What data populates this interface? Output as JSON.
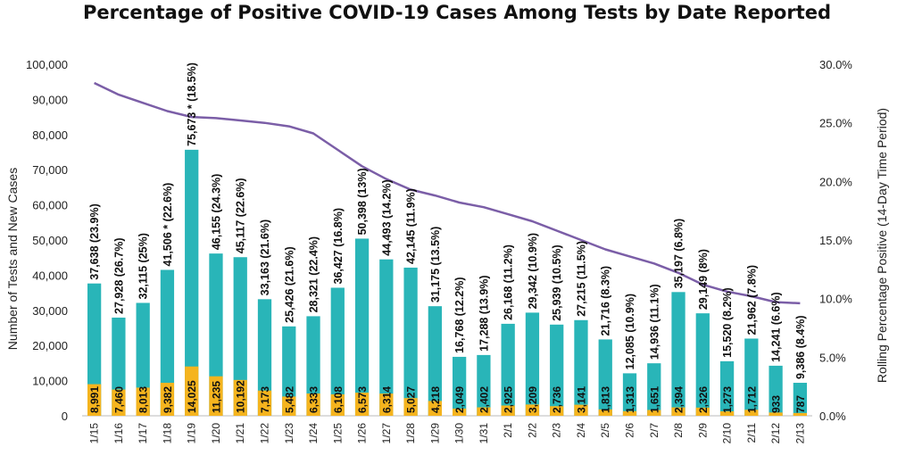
{
  "chart_data": {
    "type": "bar",
    "title": "Percentage of Positive COVID-19 Cases Among Tests by Date Reported",
    "ylabel": "Number of Tests and New Cases",
    "y2label": "Rolling Percentage Positive (14-Day Time Period)",
    "ylim": [
      0,
      100000
    ],
    "y2lim": [
      0,
      30
    ],
    "yticks": [
      "0",
      "10,000",
      "20,000",
      "30,000",
      "40,000",
      "50,000",
      "60,000",
      "70,000",
      "80,000",
      "90,000",
      "100,000"
    ],
    "y2ticks": [
      "0.0%",
      "5.0%",
      "10.0%",
      "15.0%",
      "20.0%",
      "25.0%",
      "30.0%"
    ],
    "categories": [
      "1/15",
      "1/16",
      "1/17",
      "1/18",
      "1/19",
      "1/20",
      "1/21",
      "1/22",
      "1/23",
      "1/24",
      "1/25",
      "1/26",
      "1/27",
      "1/28",
      "1/29",
      "1/30",
      "1/31",
      "2/1",
      "2/2",
      "2/3",
      "2/4",
      "2/5",
      "2/6",
      "2/7",
      "2/8",
      "2/9",
      "2/10",
      "2/11",
      "2/12",
      "2/13"
    ],
    "series": [
      {
        "name": "Tests",
        "color": "#29B5B8",
        "values": [
          37638,
          27928,
          32115,
          41506,
          75673,
          46155,
          45117,
          33163,
          25426,
          28321,
          36427,
          50398,
          44493,
          42145,
          31175,
          16768,
          17288,
          26168,
          29342,
          25939,
          27215,
          21716,
          12085,
          14936,
          35197,
          29149,
          15520,
          21962,
          14241,
          9386
        ]
      },
      {
        "name": "New Cases",
        "color": "#F5B41E",
        "values": [
          8991,
          7460,
          8013,
          9382,
          14025,
          11235,
          10192,
          7173,
          5482,
          6333,
          6108,
          6573,
          6314,
          5027,
          4218,
          2049,
          2402,
          2925,
          3209,
          2736,
          3141,
          1813,
          1313,
          1651,
          2394,
          2326,
          1273,
          1712,
          933,
          787
        ]
      },
      {
        "name": "Rolling Percentage Positive",
        "type": "line",
        "axis": "right",
        "color": "#7B5EA7",
        "values": [
          28.4,
          27.4,
          26.7,
          26.0,
          25.5,
          25.4,
          25.2,
          25.0,
          24.7,
          24.1,
          22.7,
          21.3,
          20.2,
          19.3,
          18.8,
          18.2,
          17.8,
          17.2,
          16.6,
          15.8,
          15.0,
          14.2,
          13.6,
          13.0,
          12.2,
          11.2,
          10.6,
          10.2,
          9.7,
          9.6
        ]
      }
    ],
    "bar_labels": [
      "37,638 (23.9%)",
      "27,928 (26.7%)",
      "32,115 (25%)",
      "41,506 * (22.6%)",
      "75,673 * (18.5%)",
      "46,155 (24.3%)",
      "45,117 (22.6%)",
      "33,163 (21.6%)",
      "25,426 (21.6%)",
      "28,321 (22.4%)",
      "36,427 (16.8%)",
      "50,398 (13%)",
      "44,493 (14.2%)",
      "42,145 (11.9%)",
      "31,175 (13.5%)",
      "16,768 (12.2%)",
      "17,288 (13.9%)",
      "26,168 (11.2%)",
      "29,342 (10.9%)",
      "25,939 (10.5%)",
      "27,215 (11.5%)",
      "21,716 (8.3%)",
      "12,085 (10.9%)",
      "14,936 (11.1%)",
      "35,197 (6.8%)",
      "29,149 (8%)",
      "15,520 (8.2%)",
      "21,962 (7.8%)",
      "14,241 (6.6%)",
      "9,386 (8.4%)"
    ],
    "case_labels": [
      "8,991",
      "7,460",
      "8,013",
      "9,382",
      "14,025",
      "11,235",
      "10,192",
      "7,173",
      "5,482",
      "6,333",
      "6,108",
      "6,573",
      "6,314",
      "5,027",
      "4,218",
      "2,049",
      "2,402",
      "2,925",
      "3,209",
      "2,736",
      "3,141",
      "1,813",
      "1,313",
      "1,651",
      "2,394",
      "2,326",
      "1,273",
      "1,712",
      "933",
      "787"
    ]
  }
}
